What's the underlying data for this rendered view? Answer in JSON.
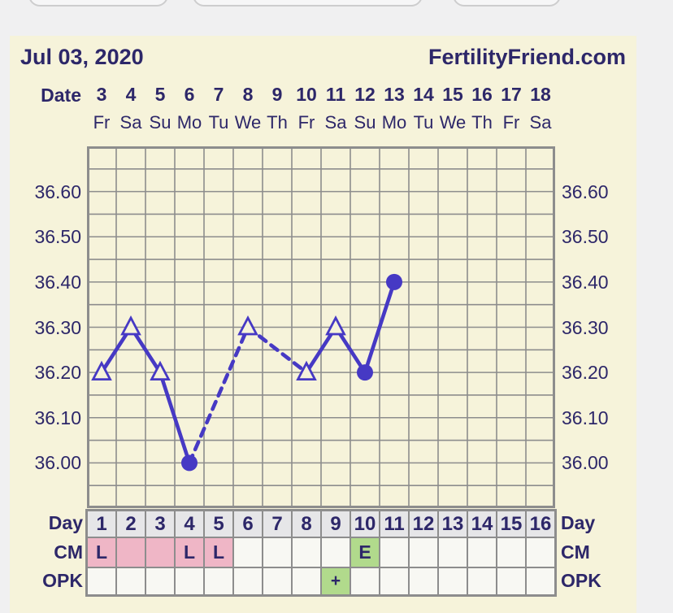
{
  "header": {
    "title_date": "Jul 03, 2020",
    "brand": "FertilityFriend.com"
  },
  "date_header": {
    "label": "Date",
    "dates": [
      "3",
      "4",
      "5",
      "6",
      "7",
      "8",
      "9",
      "10",
      "11",
      "12",
      "13",
      "14",
      "15",
      "16",
      "17",
      "18"
    ],
    "weekdays": [
      "Fr",
      "Sa",
      "Su",
      "Mo",
      "Tu",
      "We",
      "Th",
      "Fr",
      "Sa",
      "Su",
      "Mo",
      "Tu",
      "We",
      "Th",
      "Fr",
      "Sa"
    ]
  },
  "chart_data": {
    "type": "line",
    "x_axis": "cycle day",
    "x_range": [
      1,
      16
    ],
    "ylim": [
      35.9,
      36.7
    ],
    "y_minor_step": 0.05,
    "y_ticks": [
      36.6,
      36.5,
      36.4,
      36.3,
      36.2,
      36.1,
      36.0
    ],
    "grid": true,
    "series": [
      {
        "name": "temperature",
        "points": [
          {
            "day": 1,
            "temp": 36.2,
            "marker": "triangle-open"
          },
          {
            "day": 2,
            "temp": 36.3,
            "marker": "triangle-open"
          },
          {
            "day": 3,
            "temp": 36.2,
            "marker": "triangle-open"
          },
          {
            "day": 4,
            "temp": 36.0,
            "marker": "circle-filled"
          },
          {
            "day": 6,
            "temp": 36.3,
            "marker": "triangle-open"
          },
          {
            "day": 8,
            "temp": 36.2,
            "marker": "triangle-open"
          },
          {
            "day": 9,
            "temp": 36.3,
            "marker": "triangle-open"
          },
          {
            "day": 10,
            "temp": 36.2,
            "marker": "circle-filled"
          },
          {
            "day": 11,
            "temp": 36.4,
            "marker": "circle-filled"
          }
        ],
        "note": "segments between non-consecutive days are dashed (missing data on days 5 and 7); no data days 12-16"
      }
    ]
  },
  "bottom_table": {
    "day_label": "Day",
    "cm_label": "CM",
    "opk_label": "OPK",
    "days": [
      "1",
      "2",
      "3",
      "4",
      "5",
      "6",
      "7",
      "8",
      "9",
      "10",
      "11",
      "12",
      "13",
      "14",
      "15",
      "16"
    ],
    "cm_cells": {
      "1": {
        "text": "L",
        "bg": "pink"
      },
      "2": {
        "text": "",
        "bg": "pink"
      },
      "3": {
        "text": "",
        "bg": "pink"
      },
      "4": {
        "text": "L",
        "bg": "pink"
      },
      "5": {
        "text": "L",
        "bg": "pink"
      },
      "10": {
        "text": "E",
        "bg": "green"
      }
    },
    "opk_cells": {
      "9": {
        "text": "+",
        "bg": "green"
      }
    }
  },
  "colors": {
    "page_bg": "#f0f0f1",
    "panel_bg": "#f6f3da",
    "navy_text": "#2d2769",
    "line_accent": "#4639c4",
    "grid_gray": "#8d8d8d",
    "cm_pink": "#efb6c6",
    "positive_green": "#b1da8c",
    "day_row_bg": "#e6e6e8"
  }
}
